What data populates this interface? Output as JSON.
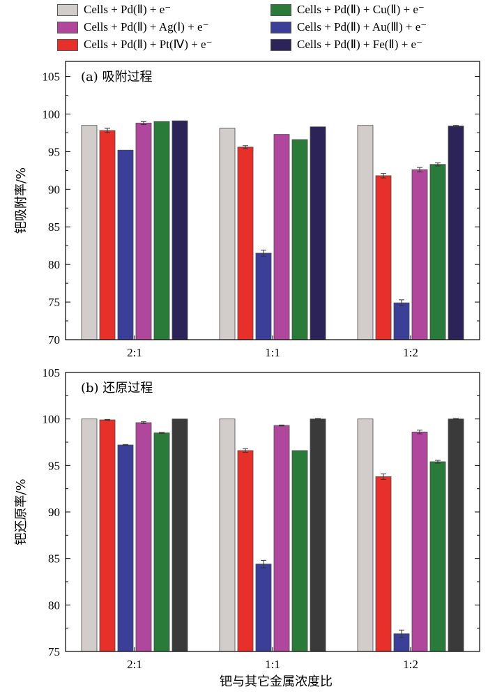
{
  "legend": {
    "items": [
      {
        "label": "Cells + Pd(Ⅱ) + e⁻",
        "color": "#d2cccb"
      },
      {
        "label": "Cells + Pd(Ⅱ) + Cu(Ⅱ) + e⁻",
        "color": "#2a7a3a"
      },
      {
        "label": "Cells + Pd(Ⅱ) + Ag(Ⅰ) + e⁻",
        "color": "#b0479c"
      },
      {
        "label": "Cells + Pd(Ⅱ) + Au(Ⅲ) + e⁻",
        "color": "#3b3f98"
      },
      {
        "label": "Cells + Pd(Ⅱ) + Pt(Ⅳ) + e⁻",
        "color": "#e8302a"
      },
      {
        "label": "Cells + Pd(Ⅱ) + Fe(Ⅱ) + e⁻",
        "color": "#2c2458"
      }
    ]
  },
  "x_axis_title": "钯与其它金属浓度比",
  "chart_data": [
    {
      "type": "bar",
      "title": "(a) 吸附过程",
      "ylabel": "钯吸附率/%",
      "xlabel": "",
      "categories": [
        "2:1",
        "1:1",
        "1:2"
      ],
      "ylim": [
        70,
        107
      ],
      "yticks": [
        70,
        75,
        80,
        85,
        90,
        95,
        100,
        105
      ],
      "series": [
        {
          "key": "pd",
          "values": [
            98.5,
            98.1,
            98.5
          ],
          "errors": [
            0,
            0,
            0
          ],
          "color": "#d2cccb"
        },
        {
          "key": "pt",
          "values": [
            97.8,
            95.6,
            91.8
          ],
          "errors": [
            0.3,
            0.2,
            0.3
          ],
          "color": "#e8302a"
        },
        {
          "key": "au",
          "values": [
            95.2,
            81.5,
            74.9
          ],
          "errors": [
            0,
            0.4,
            0.4
          ],
          "color": "#3b3f98"
        },
        {
          "key": "ag",
          "values": [
            98.8,
            97.3,
            92.6
          ],
          "errors": [
            0.2,
            0,
            0.3
          ],
          "color": "#b0479c"
        },
        {
          "key": "cu",
          "values": [
            99.0,
            96.6,
            93.3
          ],
          "errors": [
            0,
            0,
            0.2
          ],
          "color": "#2a7a3a"
        },
        {
          "key": "fe",
          "values": [
            99.1,
            98.3,
            98.4
          ],
          "errors": [
            0,
            0,
            0.1
          ],
          "color": "#2c2458"
        }
      ]
    },
    {
      "type": "bar",
      "title": "(b) 还原过程",
      "ylabel": "钯还原率/%",
      "xlabel": "",
      "categories": [
        "2:1",
        "1:1",
        "1:2"
      ],
      "ylim": [
        75,
        105
      ],
      "yticks": [
        75,
        80,
        85,
        90,
        95,
        100,
        105
      ],
      "series": [
        {
          "key": "pd",
          "values": [
            100.0,
            100.0,
            100.0
          ],
          "errors": [
            0,
            0,
            0
          ],
          "color": "#d2cccb"
        },
        {
          "key": "pt",
          "values": [
            99.9,
            96.6,
            93.8
          ],
          "errors": [
            0.05,
            0.2,
            0.3
          ],
          "color": "#e8302a"
        },
        {
          "key": "au",
          "values": [
            97.2,
            84.4,
            76.9
          ],
          "errors": [
            0.05,
            0.4,
            0.4
          ],
          "color": "#3b3f98"
        },
        {
          "key": "ag",
          "values": [
            99.6,
            99.3,
            98.6
          ],
          "errors": [
            0.1,
            0.05,
            0.2
          ],
          "color": "#b0479c"
        },
        {
          "key": "cu",
          "values": [
            98.5,
            96.6,
            95.4
          ],
          "errors": [
            0.05,
            0,
            0.15
          ],
          "color": "#2a7a3a"
        },
        {
          "key": "fe",
          "values": [
            100.0,
            100.0,
            100.0
          ],
          "errors": [
            0,
            0.05,
            0.05
          ],
          "color": "#3b3a3a"
        }
      ]
    }
  ]
}
